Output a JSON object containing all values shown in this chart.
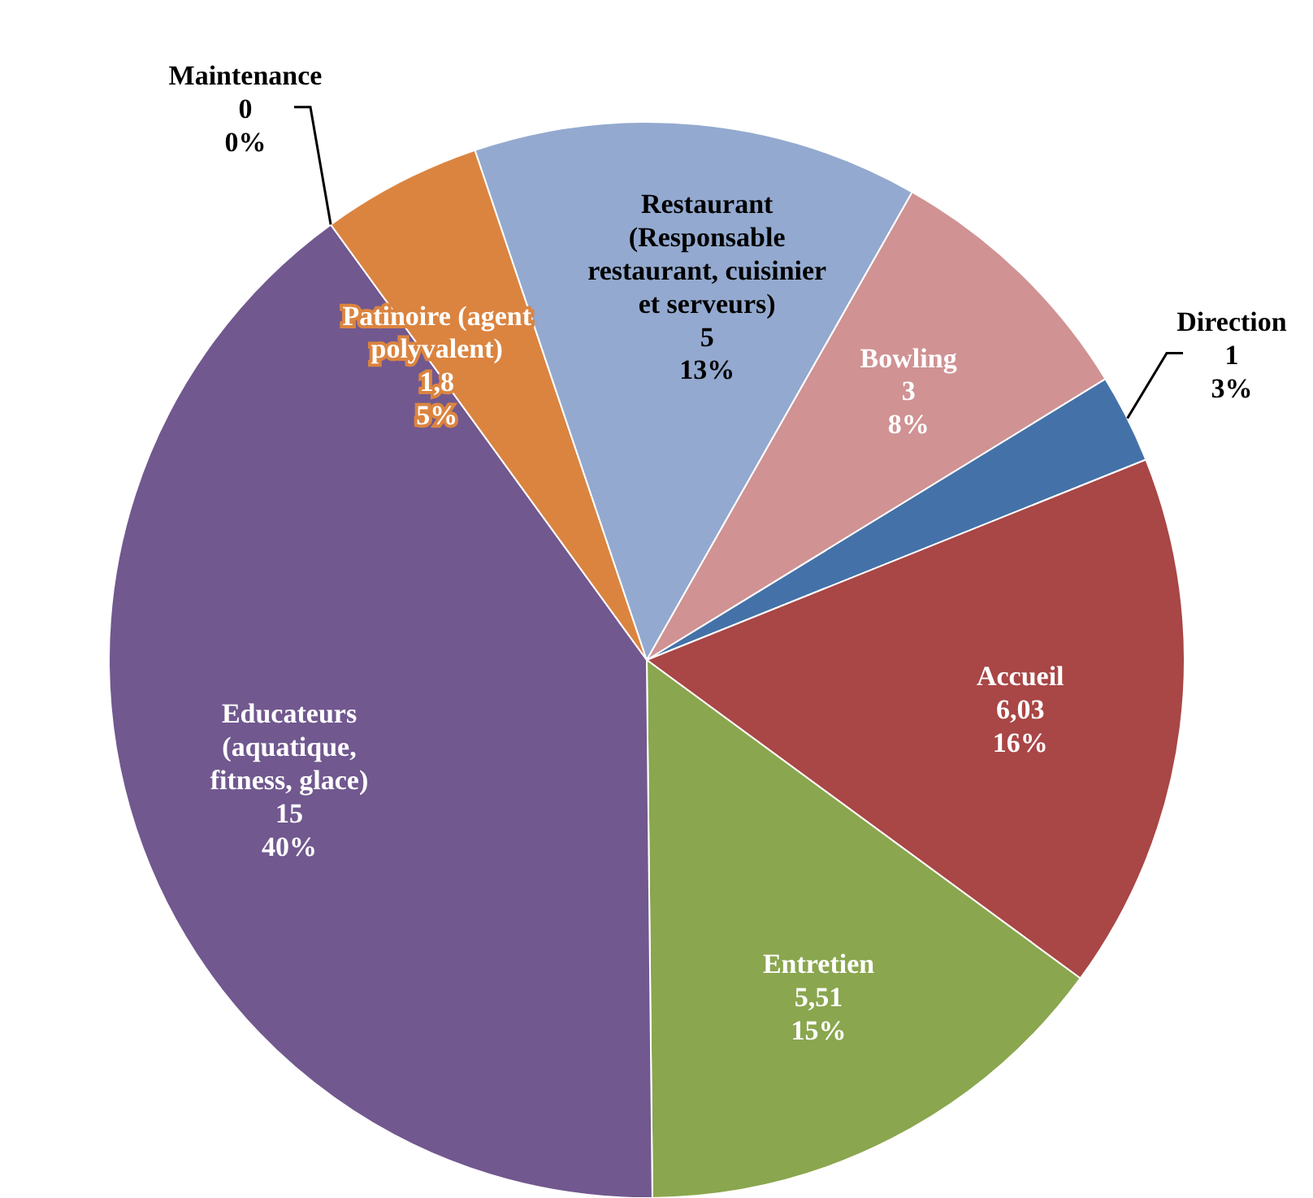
{
  "chart_data": {
    "type": "pie",
    "categories": [
      "Direction",
      "Accueil",
      "Entretien",
      "Educateurs (aquatique, fitness, glace)",
      "Maintenance",
      "Patinoire (agent polyvalent)",
      "Restaurant (Responsable restaurant, cuisinier et serveurs)",
      "Bowling"
    ],
    "values": [
      1,
      6.03,
      5.51,
      15,
      0,
      1.8,
      5,
      3
    ],
    "colors": [
      "#4472a8",
      "#a94646",
      "#8aa64e",
      "#71588f",
      "#4198af",
      "#db8440",
      "#93a9cf",
      "#d09293"
    ],
    "value_labels": [
      "1\n3%",
      "6,03\n16%",
      "5,51\n15%",
      "15\n40%",
      "0\n0%",
      "1,8\n5%",
      "5\n13%",
      "3\n8%"
    ]
  }
}
